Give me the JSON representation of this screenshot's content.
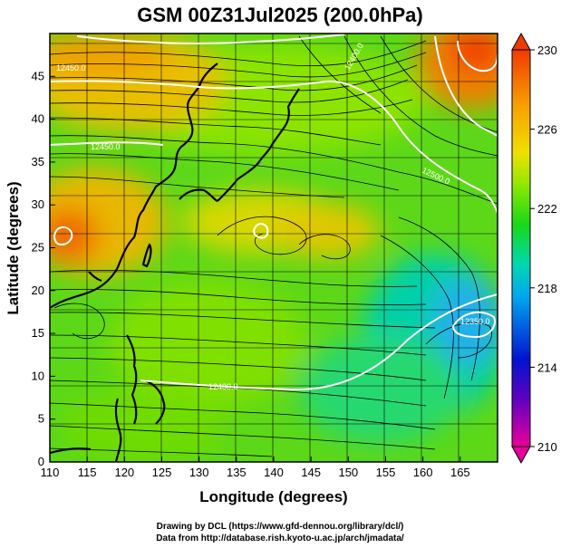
{
  "title": "GSM 00Z31Jul2025 (200.0hPa)",
  "xlabel": "Longitude (degrees)",
  "ylabel": "Latitude  (degrees)",
  "credits": {
    "line1": "Drawing by DCL (https://www.gfd-dennou.org/library/dcl/)",
    "line2": "Data from http://database.rish.kyoto-u.ac.jp/arch/jmadata/"
  },
  "chart_data": {
    "type": "heatmap",
    "title": "GSM 00Z31Jul2025 (200.0hPa)",
    "xlabel": "Longitude (degrees)",
    "ylabel": "Latitude  (degrees)",
    "xlim": [
      110,
      170
    ],
    "ylim": [
      0,
      50
    ],
    "x_ticks": [
      110,
      115,
      120,
      125,
      130,
      135,
      140,
      145,
      150,
      155,
      160,
      165
    ],
    "y_ticks": [
      0,
      5,
      10,
      15,
      20,
      25,
      30,
      35,
      40,
      45
    ],
    "grid": true,
    "colorbar": {
      "label_values": [
        210,
        214,
        218,
        222,
        226,
        230
      ],
      "range": [
        210,
        230
      ],
      "colors": [
        "#e8009a",
        "#5a00c8",
        "#0018d8",
        "#00b8f0",
        "#00d8a8",
        "#20d820",
        "#9ce800",
        "#f0e000",
        "#f8a800",
        "#f04000"
      ]
    },
    "field_features": [
      {
        "name": "warm-core west",
        "lon": 111,
        "lat": 29,
        "value": 229
      },
      {
        "name": "warm-core northeast",
        "lon": 166,
        "lat": 46,
        "value": 230
      },
      {
        "name": "warm band north",
        "lon": 118,
        "lat": 46,
        "value": 227
      },
      {
        "name": "cold-core southeast",
        "lon": 165,
        "lat": 19,
        "value": 217
      }
    ],
    "contours": [
      {
        "label": "12400.0",
        "value": 12400
      },
      {
        "label": "12450.0",
        "value": 12450
      },
      {
        "label": "12500.0",
        "value": 12500
      },
      {
        "label": "12450.0",
        "value": 12450
      },
      {
        "label": "12400.0",
        "value": 12400
      },
      {
        "label": "12350.0",
        "value": 12350
      }
    ]
  }
}
